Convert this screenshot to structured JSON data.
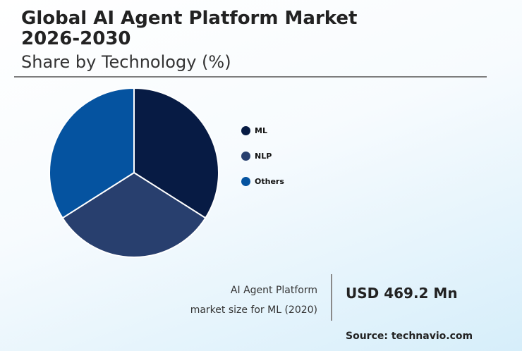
{
  "header": {
    "title": "Global AI Agent Platform Market 2026-2030",
    "subtitle": "Share by Technology (%)"
  },
  "chart_data": {
    "type": "pie",
    "categories": [
      "ML",
      "NLP",
      "Others"
    ],
    "values": [
      34,
      32,
      34
    ],
    "colors": [
      "#071b44",
      "#283f6e",
      "#0553a0"
    ],
    "start_angle_deg": 0,
    "legend_position": "right"
  },
  "market_size": {
    "label_line1": "AI Agent Platform",
    "label_line2": "market size for ML (2020)",
    "value": "USD 469.2 Mn"
  },
  "footer": {
    "source": "Source: technavio.com"
  }
}
